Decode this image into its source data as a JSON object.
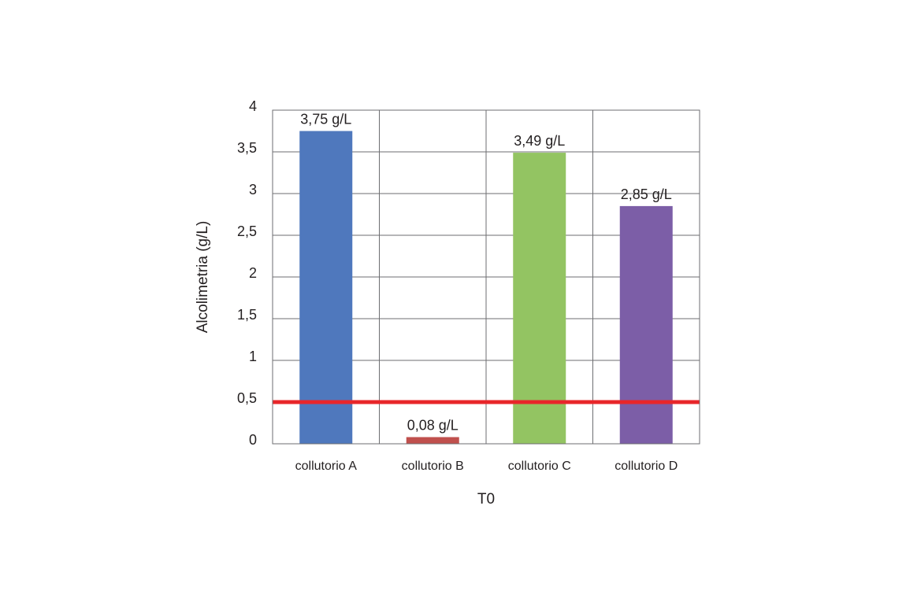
{
  "chart_data": {
    "type": "bar",
    "categories": [
      "collutorio A",
      "collutorio B",
      "collutorio C",
      "collutorio D"
    ],
    "values": [
      3.75,
      0.08,
      3.49,
      2.85
    ],
    "data_labels": [
      "3,75 g/L",
      "0,08 g/L",
      "3,49 g/L",
      "2,85 g/L"
    ],
    "colors": [
      "#4f78bd",
      "#c0504d",
      "#93c462",
      "#7c5ea7"
    ],
    "xlabel": "T0",
    "ylabel": "Alcolimetria (g/L)",
    "ylim": [
      0,
      4
    ],
    "yticks": [
      0,
      0.5,
      1,
      1.5,
      2,
      2.5,
      3,
      3.5,
      4
    ],
    "ytick_labels": [
      "0",
      "0,5",
      "1",
      "1,5",
      "2",
      "2,5",
      "3",
      "3,5",
      "4"
    ],
    "reference_line": {
      "value": 0.5,
      "color": "#e8262a"
    },
    "grid": true,
    "legend": "none"
  }
}
